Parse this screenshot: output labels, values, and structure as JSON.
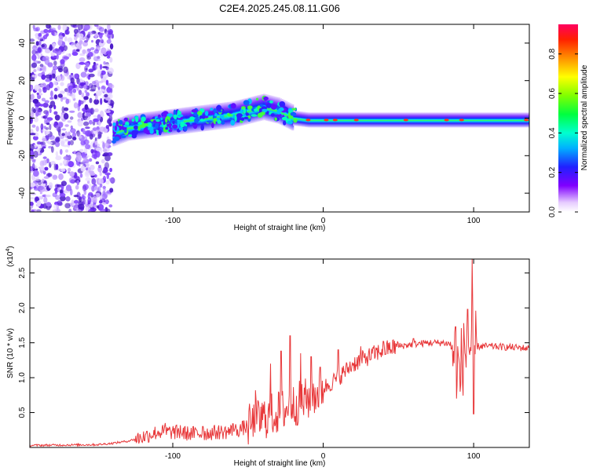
{
  "figure_title": "C2E4.2025.245.08.11.G06",
  "colors": {
    "line": "#e8383a",
    "axis": "#000000",
    "background": "#ffffff",
    "colorbar": [
      "#8000ff",
      "#3000ff",
      "#0050ff",
      "#00d8ff",
      "#00ff80",
      "#40ff00",
      "#c0ff00",
      "#ffff00",
      "#ffa000",
      "#ff2000",
      "#ff0040"
    ]
  },
  "chart_data": [
    {
      "type": "heatmap",
      "title": "C2E4.2025.245.08.11.G06",
      "xlabel": "Height of straight line (km)",
      "ylabel": "Frequency (Hz)",
      "xlim": [
        -195,
        137
      ],
      "ylim": [
        -50,
        50
      ],
      "x_ticks": [
        -100,
        0,
        100
      ],
      "x_tick_labels": [
        "-100",
        "0",
        "100"
      ],
      "y_ticks": [
        -40,
        -20,
        0,
        20,
        40
      ],
      "y_tick_labels": [
        "-40",
        "-20",
        "0",
        "20",
        "40"
      ],
      "colorbar": {
        "label": "Normalized spectral amplitude",
        "range": [
          0,
          0.95
        ],
        "ticks": [
          0.0,
          0.2,
          0.4,
          0.6,
          0.8
        ],
        "tick_labels": [
          "0.0",
          "0.2",
          "0.4",
          "0.6",
          "0.8"
        ]
      },
      "ridge": [
        [
          -140,
          -8
        ],
        [
          -130,
          -5
        ],
        [
          -120,
          -4
        ],
        [
          -110,
          -3
        ],
        [
          -100,
          -2
        ],
        [
          -90,
          -1
        ],
        [
          -80,
          0
        ],
        [
          -70,
          1
        ],
        [
          -60,
          2
        ],
        [
          -50,
          4
        ],
        [
          -40,
          6
        ],
        [
          -30,
          4
        ],
        [
          -20,
          0
        ],
        [
          -10,
          -1
        ],
        [
          0,
          -1
        ],
        [
          20,
          -1
        ],
        [
          40,
          -1
        ],
        [
          60,
          -1
        ],
        [
          80,
          -1
        ],
        [
          100,
          -1
        ],
        [
          120,
          -1
        ],
        [
          137,
          -1
        ]
      ]
    },
    {
      "type": "line",
      "xlabel": "Height of straight line (km)",
      "ylabel": "SNR (10 * v/v)",
      "y_scale_label": "(x10",
      "y_scale_exp": "4",
      "xlim": [
        -195,
        137
      ],
      "ylim": [
        0,
        27000
      ],
      "x_ticks": [
        -100,
        0,
        100
      ],
      "x_tick_labels": [
        "-100",
        "0",
        "100"
      ],
      "y_ticks": [
        5000,
        10000,
        15000,
        20000,
        25000
      ],
      "y_tick_labels": [
        "0.5",
        "1.0",
        "1.5",
        "2.0",
        "2.5"
      ],
      "series": [
        {
          "name": "SNR",
          "x": [
            -195,
            -150,
            -140,
            -130,
            -120,
            -110,
            -100,
            -90,
            -80,
            -70,
            -60,
            -50,
            -40,
            -30,
            -20,
            -10,
            0,
            10,
            20,
            30,
            40,
            50,
            60,
            70,
            80,
            85,
            90,
            95,
            100,
            105,
            110,
            120,
            130,
            137
          ],
          "y": [
            300,
            400,
            600,
            900,
            1500,
            2200,
            2200,
            2000,
            2000,
            2200,
            2300,
            3000,
            4200,
            5000,
            6000,
            7000,
            8500,
            10000,
            12000,
            13000,
            14000,
            14500,
            14800,
            15000,
            15000,
            14800,
            11000,
            14000,
            14500,
            14500,
            14500,
            14400,
            14300,
            14200
          ],
          "spikes": [
            {
              "x": -105,
              "y": 3500
            },
            {
              "x": -95,
              "y": 3200
            },
            {
              "x": -80,
              "y": 3000
            },
            {
              "x": -60,
              "y": 3400
            },
            {
              "x": -45,
              "y": 8200
            },
            {
              "x": -35,
              "y": 12000
            },
            {
              "x": -28,
              "y": 13800
            },
            {
              "x": -22,
              "y": 16000
            },
            {
              "x": -15,
              "y": 13500
            },
            {
              "x": -8,
              "y": 13000
            },
            {
              "x": -2,
              "y": 11500
            },
            {
              "x": 10,
              "y": 14000
            },
            {
              "x": 25,
              "y": 14500
            },
            {
              "x": 40,
              "y": 15200
            },
            {
              "x": 60,
              "y": 15600
            },
            {
              "x": 88,
              "y": 17300
            },
            {
              "x": 91,
              "y": 8000
            },
            {
              "x": 96,
              "y": 19800
            },
            {
              "x": 99,
              "y": 27000
            },
            {
              "x": 100,
              "y": 4800
            }
          ]
        }
      ]
    }
  ]
}
